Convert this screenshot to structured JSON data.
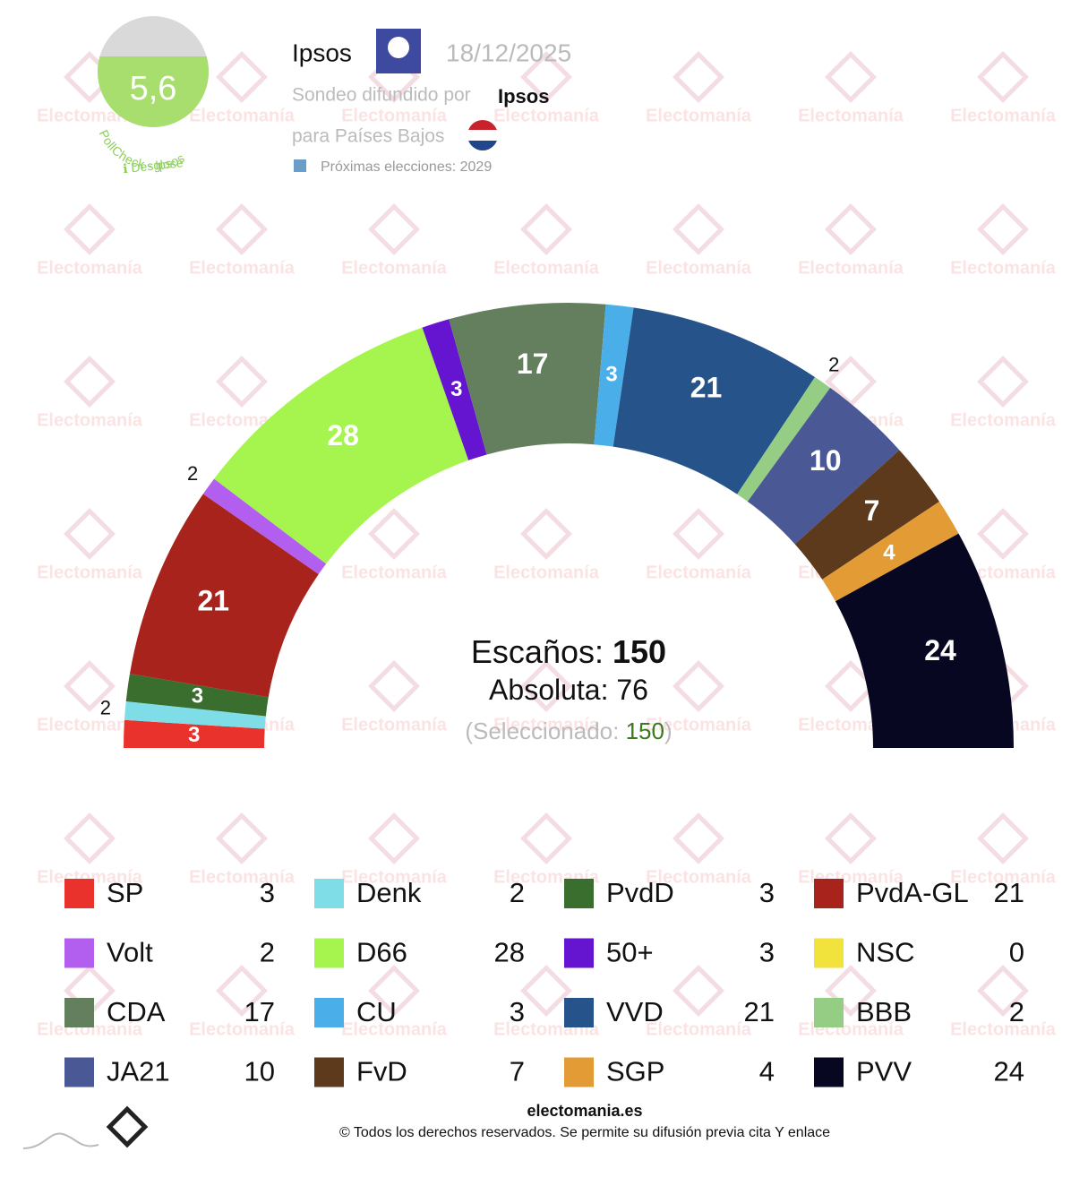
{
  "header": {
    "score": "5,6",
    "pollcheck": "PollCheck - Ipsos",
    "breakdown": "ℹ Desglose",
    "pollster": "Ipsos",
    "date": "18/12/2025",
    "spread_by": "Sondeo difundido por",
    "spread_by_name": "Ipsos",
    "country": "para Países Bajos",
    "next_election": "Próximas elecciones: 2029"
  },
  "watermark": "Electomanía",
  "chart_data": {
    "type": "hemicycle",
    "categories": [
      "SP",
      "Denk",
      "PvdD",
      "PvdA-GL",
      "Volt",
      "D66",
      "50+",
      "NSC",
      "CDA",
      "CU",
      "VVD",
      "BBB",
      "JA21",
      "FvD",
      "SGP",
      "PVV"
    ],
    "values": [
      3,
      2,
      3,
      21,
      2,
      28,
      3,
      0,
      17,
      3,
      21,
      2,
      10,
      7,
      4,
      24
    ],
    "colors": [
      "#e8322b",
      "#7fdde8",
      "#3a6e2f",
      "#a9231d",
      "#b25ff0",
      "#a6f54e",
      "#6515d0",
      "#f2e23c",
      "#647f5d",
      "#4aaee8",
      "#26538a",
      "#95cd84",
      "#4a5896",
      "#5d3a1b",
      "#e39b35",
      "#070722"
    ],
    "seats_label": "Escaños:",
    "seats_total": 150,
    "majority_label": "Absoluta:",
    "majority": 76,
    "selected_label": "(Seleccionado:",
    "selected": 150,
    "selected_close": ")"
  },
  "footer": {
    "site": "electomania.es",
    "rights": "© Todos los derechos reservados. Se permite su difusión previa cita Y enlace"
  }
}
